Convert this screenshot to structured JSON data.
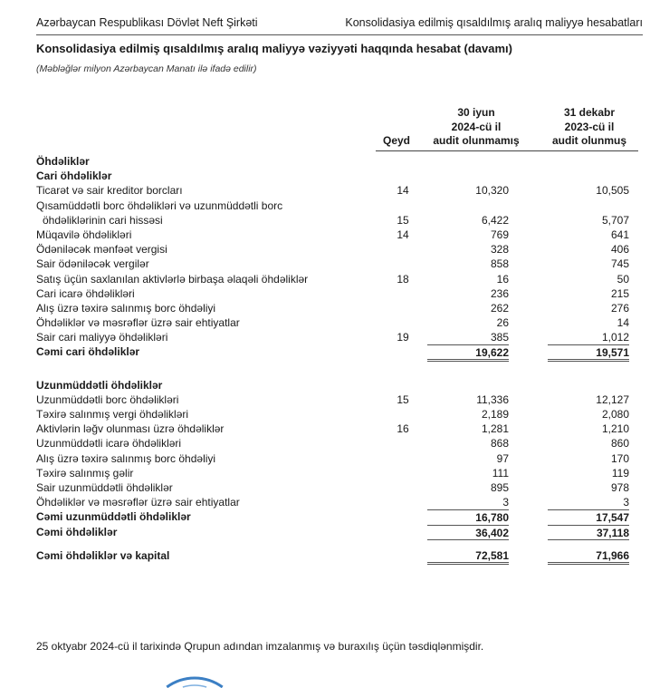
{
  "header": {
    "company": "Azərbaycan Respublikası Dövlət Neft Şirkəti",
    "report": "Konsolidasiya edilmiş qısaldılmış aralıq maliyyə hesabatları"
  },
  "title": "Konsolidasiya edilmiş qısaldılmış aralıq maliyyə vəziyyəti haqqında hesabat (davamı)",
  "subtitle": "(Məbləğlər milyon Azərbaycan Manatı ilə ifadə edilir)",
  "columns": {
    "note": "Qeyd",
    "col1": [
      "30 iyun",
      "2024-cü il",
      "audit olunmamış"
    ],
    "col2": [
      "31 dekabr",
      "2023-cü il",
      "audit olunmuş"
    ]
  },
  "rows": [
    {
      "label": "Öhdəliklər",
      "bold": true
    },
    {
      "label": "Cari öhdəliklər",
      "bold": true
    },
    {
      "label": "Ticarət və sair kreditor borcları",
      "note": "14",
      "v1": "10,320",
      "v2": "10,505"
    },
    {
      "label": "Qısamüddətli borc öhdəlikləri və uzunmüddətli borc"
    },
    {
      "label": "öhdəliklərinin cari hissəsi",
      "indent": true,
      "note": "15",
      "v1": "6,422",
      "v2": "5,707"
    },
    {
      "label": "Müqavilə öhdəlikləri",
      "note": "14",
      "v1": "769",
      "v2": "641"
    },
    {
      "label": "Ödəniləcək mənfəət vergisi",
      "v1": "328",
      "v2": "406"
    },
    {
      "label": "Sair ödəniləcək vergilər",
      "v1": "858",
      "v2": "745"
    },
    {
      "label": "Satış üçün saxlanılan aktivlərlə birbaşa əlaqəli öhdəliklər",
      "note": "18",
      "v1": "16",
      "v2": "50"
    },
    {
      "label": "Cari icarə öhdəlikləri",
      "v1": "236",
      "v2": "215"
    },
    {
      "label": "Alış üzrə təxirə salınmış borc öhdəliyi",
      "v1": "262",
      "v2": "276"
    },
    {
      "label": "Öhdəliklər və məsrəflər üzrə sair ehtiyatlar",
      "v1": "26",
      "v2": "14"
    },
    {
      "label": "Sair cari maliyyə öhdəlikləri",
      "note": "19",
      "v1": "385",
      "v2": "1,012"
    },
    {
      "label": "Cəmi cari öhdəliklər",
      "bold": true,
      "total": "dbl",
      "v1": "19,622",
      "v2": "19,571"
    },
    {
      "spacer": true
    },
    {
      "label": "Uzunmüddətli öhdəliklər",
      "bold": true
    },
    {
      "label": "Uzunmüddətli borc öhdəlikləri",
      "note": "15",
      "v1": "11,336",
      "v2": "12,127"
    },
    {
      "label": "Təxirə salınmış vergi öhdəlikləri",
      "v1": "2,189",
      "v2": "2,080"
    },
    {
      "label": "Aktivlərin ləğv olunması üzrə öhdəliklər",
      "note": "16",
      "v1": "1,281",
      "v2": "1,210"
    },
    {
      "label": "Uzunmüddətli icarə öhdəlikləri",
      "v1": "868",
      "v2": "860"
    },
    {
      "label": "Alış üzrə təxirə salınmış borc öhdəliyi",
      "v1": "97",
      "v2": "170"
    },
    {
      "label": "Təxirə salınmış gəlir",
      "v1": "111",
      "v2": "119"
    },
    {
      "label": "Sair uzunmüddətli öhdəliklər",
      "v1": "895",
      "v2": "978"
    },
    {
      "label": "Öhdəliklər və məsrəflər üzrə sair ehtiyatlar",
      "v1": "3",
      "v2": "3"
    },
    {
      "label": "Cəmi uzunmüddətli öhdəliklər",
      "bold": true,
      "total": "top",
      "v1": "16,780",
      "v2": "17,547"
    },
    {
      "label": "Cəmi öhdəliklər",
      "bold": true,
      "total": "sgl",
      "v1": "36,402",
      "v2": "37,118"
    },
    {
      "spacer": true,
      "small": true
    },
    {
      "label": "Cəmi öhdəliklər və kapital",
      "bold": true,
      "total": "dblonly",
      "v1": "72,581",
      "v2": "71,966"
    }
  ],
  "footer": "25 oktyabr 2024-cü il tarixində Qrupun adından imzalanmış və buraxılış üçün təsdiqlənmişdir.",
  "colors": {
    "text": "#1a1a1a",
    "rule": "#555555",
    "stamp": "#3b7fc4"
  }
}
